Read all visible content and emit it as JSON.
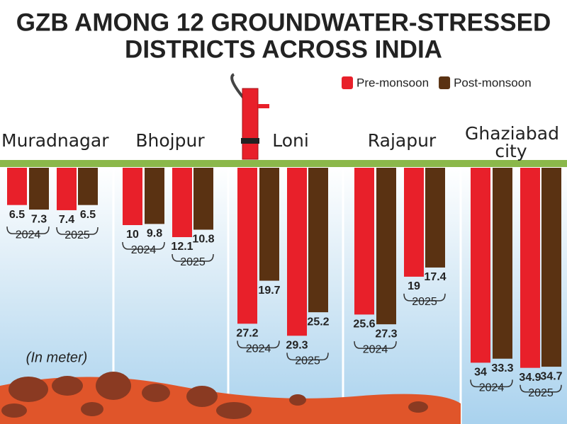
{
  "chart_data": {
    "type": "bar",
    "title": [
      "GZB AMONG 12 GROUNDWATER-STRESSED",
      "DISTRICTS ACROSS INDIA"
    ],
    "note": "(In meter)",
    "categories": [
      "Muradnagar",
      "Bhojpur",
      "Loni",
      "Rajapur",
      "Ghaziabad city"
    ],
    "years": [
      "2024",
      "2025"
    ],
    "series": [
      {
        "name": "Pre-monsoon",
        "color": "#e8202a",
        "values": [
          [
            6.5,
            7.4
          ],
          [
            10,
            12.1
          ],
          [
            27.2,
            29.3
          ],
          [
            25.6,
            19
          ],
          [
            34,
            34.9
          ]
        ]
      },
      {
        "name": "Post-monsoon",
        "color": "#5a3212",
        "values": [
          [
            7.3,
            6.5
          ],
          [
            9.8,
            10.8
          ],
          [
            19.7,
            25.2
          ],
          [
            27.3,
            17.4
          ],
          [
            33.3,
            34.7
          ]
        ]
      }
    ]
  }
}
